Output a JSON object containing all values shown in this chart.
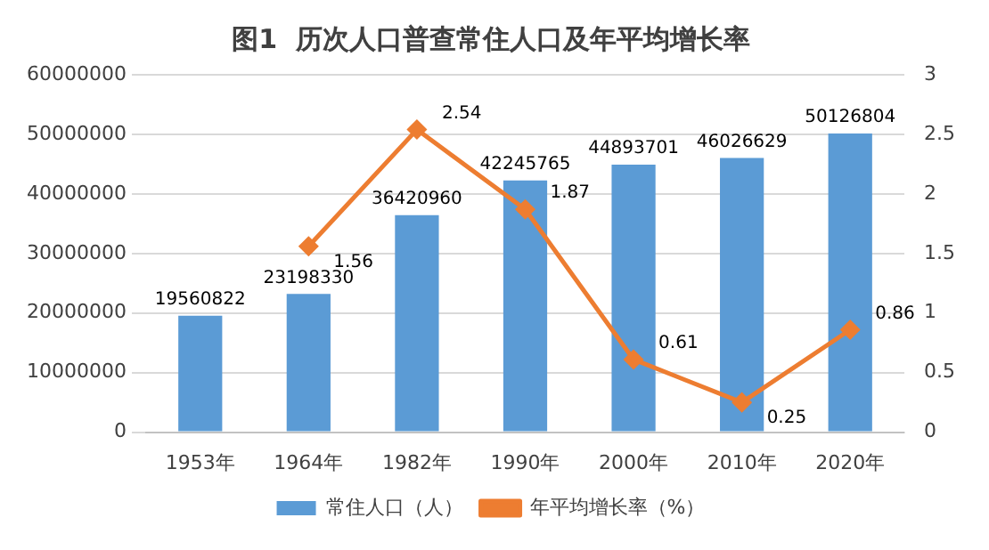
{
  "chart_data": {
    "type": "bar",
    "title": "图1  历次人口普查常住人口及年平均增长率",
    "categories": [
      "1953年",
      "1964年",
      "1982年",
      "1990年",
      "2000年",
      "2010年",
      "2020年"
    ],
    "series": [
      {
        "name": "常住人口（人）",
        "color": "#5b9bd5",
        "values": [
          19560822,
          23198330,
          36420960,
          42245765,
          44893701,
          46026629,
          50126804
        ]
      },
      {
        "name": "年平均增长率（%）",
        "type": "line",
        "axis": "y2",
        "color": "#ed7d31",
        "marker": "diamond",
        "values": [
          null,
          1.56,
          2.54,
          1.87,
          0.61,
          0.25,
          0.86
        ]
      }
    ],
    "ylim": [
      0,
      60000000
    ],
    "yticks": [
      0,
      10000000,
      20000000,
      30000000,
      40000000,
      50000000,
      60000000
    ],
    "y2lim": [
      0,
      3
    ],
    "y2ticks": [
      0,
      0.5,
      1,
      1.5,
      2,
      2.5,
      3
    ],
    "grid": "y",
    "legend": "bottom",
    "data_labels": true
  }
}
